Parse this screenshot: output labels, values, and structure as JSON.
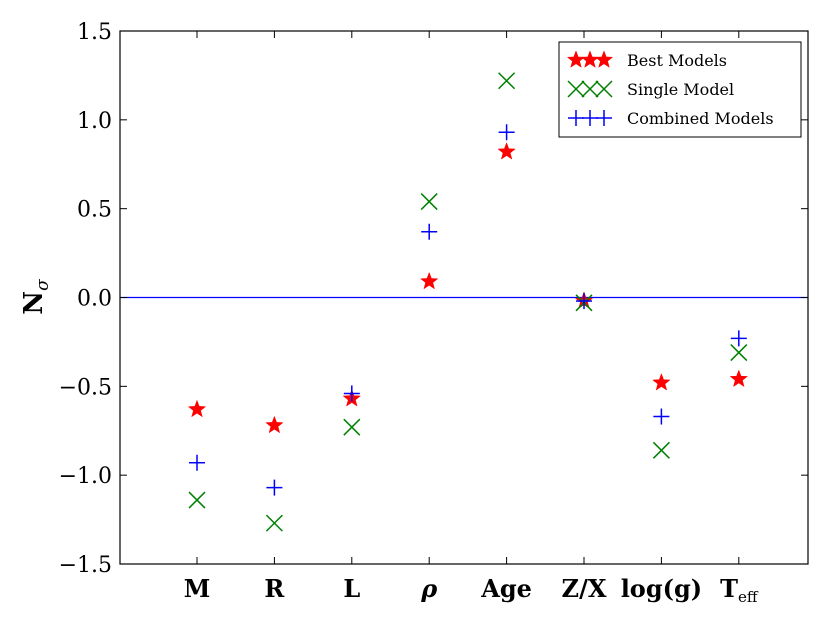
{
  "chart_data": {
    "type": "scatter",
    "ylabel": "N",
    "ylabel_sub": "σ",
    "ylim": [
      -1.5,
      1.5
    ],
    "yticks": [
      1.5,
      1.0,
      0.5,
      0.0,
      -0.5,
      -1.0,
      -1.5
    ],
    "ytick_labels": [
      "1.5",
      "1.0",
      "0.5",
      "0.0",
      "−0.5",
      "−1.0",
      "−1.5"
    ],
    "categories": [
      "M",
      "R",
      "L",
      "ρ",
      "Age",
      "Z/X",
      "log(g)",
      "T_eff"
    ],
    "category_display": [
      {
        "main": "M",
        "sub": ""
      },
      {
        "main": "R",
        "sub": ""
      },
      {
        "main": "L",
        "sub": ""
      },
      {
        "main": "ρ",
        "sub": "",
        "italic": true
      },
      {
        "main": "Age",
        "sub": ""
      },
      {
        "main": "Z/X",
        "sub": ""
      },
      {
        "main": "log(g)",
        "sub": "",
        "italic_g": true
      },
      {
        "main": "T",
        "sub": "eff"
      }
    ],
    "reference_line": 0.0,
    "grid": false,
    "legend_position": "top-right",
    "series": [
      {
        "name": "Best Models",
        "marker": "star",
        "color": "#ff0000",
        "values": [
          -0.63,
          -0.72,
          -0.57,
          0.09,
          0.82,
          -0.02,
          -0.48,
          -0.46
        ]
      },
      {
        "name": "Single Model",
        "marker": "x",
        "color": "#008000",
        "values": [
          -1.14,
          -1.27,
          -0.73,
          0.54,
          1.22,
          -0.03,
          -0.86,
          -0.31
        ]
      },
      {
        "name": "Combined Models",
        "marker": "plus",
        "color": "#0000ff",
        "values": [
          -0.93,
          -1.07,
          -0.54,
          0.37,
          0.93,
          -0.02,
          -0.67,
          -0.23
        ]
      }
    ]
  }
}
